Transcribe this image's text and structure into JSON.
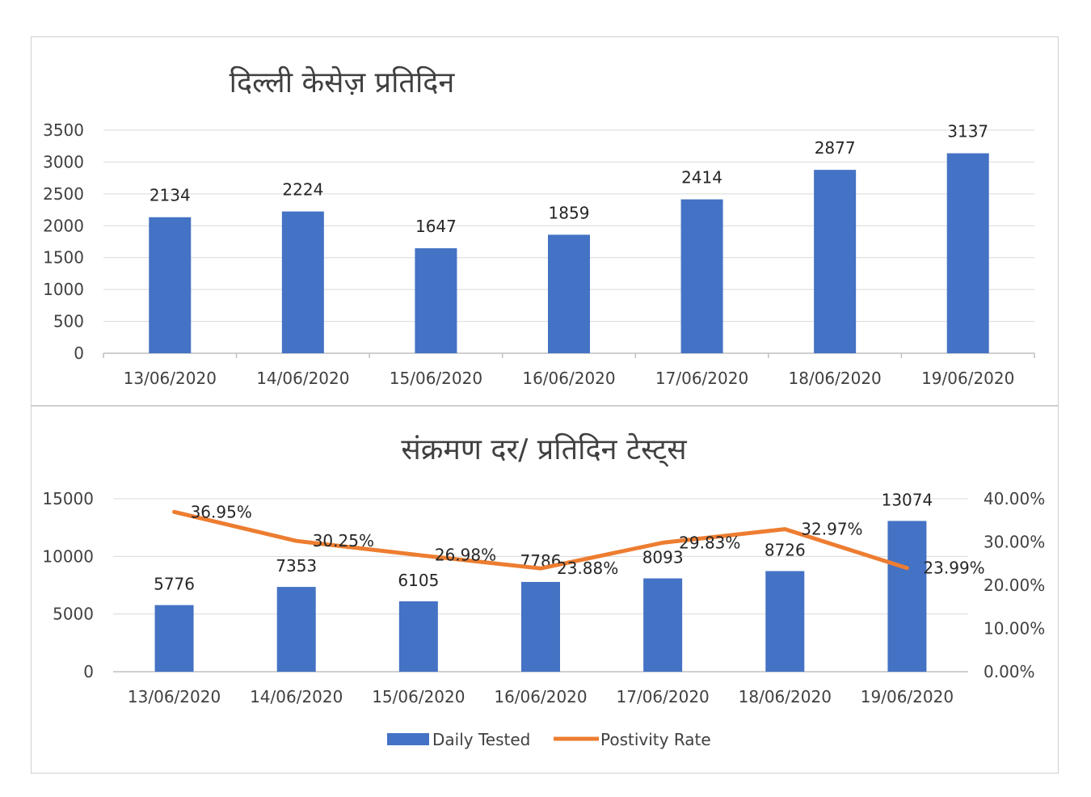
{
  "colors": {
    "bar": "#4472C4",
    "line": "#ED7D31",
    "grid": "#d9d9d9",
    "axis": "#bfbfbf",
    "text": "#404040"
  },
  "chart_data": [
    {
      "type": "bar",
      "title": "दिल्ली केसेज़ प्रतिदिन",
      "categories": [
        "13/06/2020",
        "14/06/2020",
        "15/06/2020",
        "16/06/2020",
        "17/06/2020",
        "18/06/2020",
        "19/06/2020"
      ],
      "values": [
        2134,
        2224,
        1647,
        1859,
        2414,
        2877,
        3137
      ],
      "ylim": [
        0,
        3500
      ],
      "yticks": [
        "0",
        "500",
        "1000",
        "1500",
        "2000",
        "2500",
        "3000",
        "3500"
      ],
      "grid": true,
      "legend": "none"
    },
    {
      "type": "bar",
      "title": "संक्रमण दर/  प्रतिदिन  टेस्ट्स",
      "categories": [
        "13/06/2020",
        "14/06/2020",
        "15/06/2020",
        "16/06/2020",
        "17/06/2020",
        "18/06/2020",
        "19/06/2020"
      ],
      "series": [
        {
          "name": "Daily Tested",
          "type": "bar",
          "axis": "left",
          "values": [
            5776,
            7353,
            6105,
            7786,
            8093,
            8726,
            13074
          ]
        },
        {
          "name": "Postivity Rate",
          "type": "line",
          "axis": "right",
          "values": [
            36.95,
            30.25,
            26.98,
            23.88,
            29.83,
            32.97,
            23.99
          ],
          "labels": [
            "36.95%",
            "30.25%",
            "26.98%",
            "23.88%",
            "29.83%",
            "32.97%",
            "23.99%"
          ]
        }
      ],
      "ylim": [
        0,
        15000
      ],
      "yticks": [
        "0",
        "5000",
        "10000",
        "15000"
      ],
      "y2lim": [
        0,
        40
      ],
      "y2ticks": [
        "0.00%",
        "10.00%",
        "20.00%",
        "30.00%",
        "40.00%"
      ],
      "grid": true,
      "legend": "bottom"
    }
  ]
}
